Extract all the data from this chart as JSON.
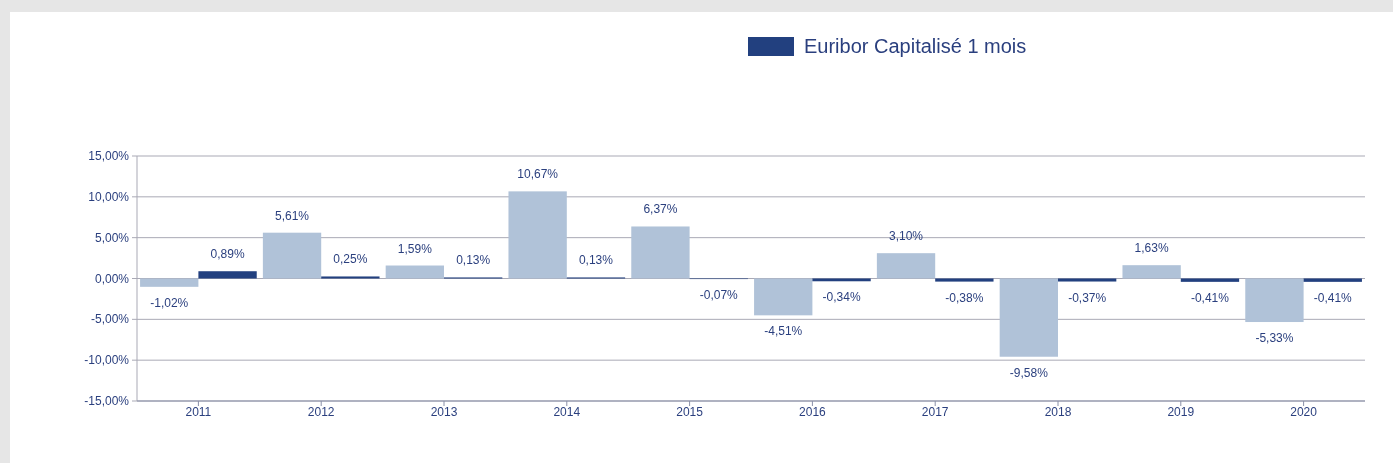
{
  "chart_data": {
    "type": "bar",
    "categories": [
      "2011",
      "2012",
      "2013",
      "2014",
      "2015",
      "2016",
      "2017",
      "2018",
      "2019",
      "2020"
    ],
    "series": [
      {
        "color": "#b0c2d8",
        "values": [
          -1.02,
          5.61,
          1.59,
          10.67,
          6.37,
          -4.51,
          3.1,
          -9.58,
          1.63,
          -5.33
        ],
        "value_labels": [
          "-1,02%",
          "5,61%",
          "1,59%",
          "10,67%",
          "6,37%",
          "-4,51%",
          "3,10%",
          "-9,58%",
          "1,63%",
          "-5,33%"
        ]
      },
      {
        "name": "Euribor Capitalisé 1 mois",
        "color": "#22407f",
        "values": [
          0.89,
          0.25,
          0.13,
          0.13,
          -0.07,
          -0.34,
          -0.38,
          -0.37,
          -0.41,
          -0.41
        ],
        "value_labels": [
          "0,89%",
          "0,25%",
          "0,13%",
          "0,13%",
          "-0,07%",
          "-0,34%",
          "-0,38%",
          "-0,37%",
          "-0,41%",
          "-0,41%"
        ]
      }
    ],
    "ylim": [
      -15,
      15
    ],
    "yticks": [
      {
        "value": -15,
        "label": "-15,00%"
      },
      {
        "value": -10,
        "label": "-10,00%"
      },
      {
        "value": -5,
        "label": "-5,00%"
      },
      {
        "value": 0,
        "label": "0,00%"
      },
      {
        "value": 5,
        "label": "5,00%"
      },
      {
        "value": 10,
        "label": "10,00%"
      },
      {
        "value": 15,
        "label": "15,00%"
      }
    ],
    "grid": "y",
    "legend": "top"
  }
}
